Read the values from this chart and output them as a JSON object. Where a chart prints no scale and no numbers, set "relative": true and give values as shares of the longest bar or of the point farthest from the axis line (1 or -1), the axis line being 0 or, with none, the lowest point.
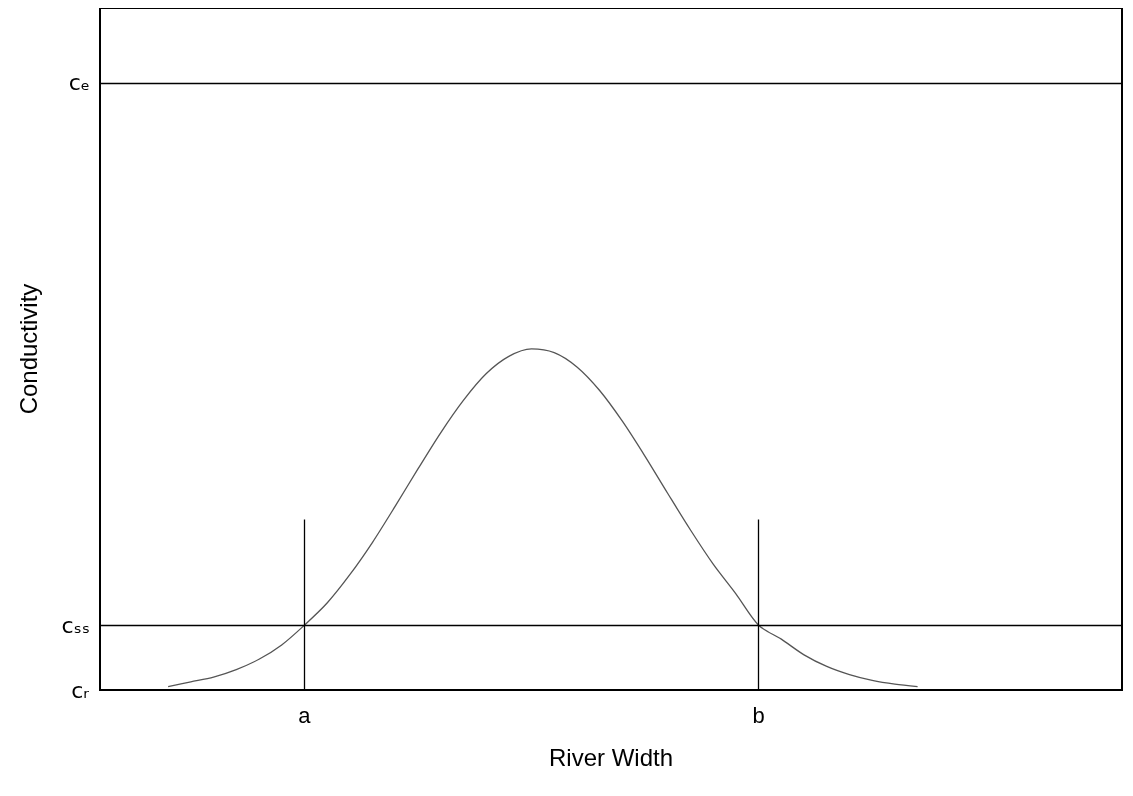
{
  "chart_data": {
    "type": "line",
    "xlabel": "River Width",
    "ylabel": "Conductivity",
    "relative": true,
    "categories": [
      null,
      null,
      null,
      null,
      null,
      null,
      null,
      null,
      null,
      "a",
      null,
      null,
      null,
      null,
      null,
      null,
      null,
      null,
      null,
      null,
      null,
      null,
      null,
      null,
      null,
      null,
      null,
      null,
      null,
      "b",
      null,
      null,
      null,
      null,
      null,
      null,
      null,
      null,
      null,
      null,
      null,
      null,
      null,
      null,
      null,
      null
    ],
    "series": [
      {
        "color": "#555555",
        "values": [
          null,
          null,
          null,
          0.01,
          0.024,
          0.038,
          0.06,
          0.09,
          0.132,
          0.19,
          0.255,
          0.338,
          0.433,
          0.539,
          0.648,
          0.754,
          0.849,
          0.927,
          0.978,
          1,
          0.989,
          0.947,
          0.878,
          0.788,
          0.685,
          0.576,
          0.469,
          0.369,
          0.282,
          0.19,
          0.149,
          0.103,
          0.069,
          0.045,
          0.028,
          0.017,
          0.01,
          null,
          null,
          null,
          null,
          null,
          null,
          null,
          null,
          null
        ]
      }
    ],
    "annotations": [
      "cᵣ"
    ],
    "ref_lines": [
      {
        "axis": "y",
        "value": 0.188,
        "label": "cₛₛ",
        "color": "#000000"
      },
      {
        "axis": "y",
        "value": 1.777,
        "label": "cₑ",
        "color": "#000000"
      },
      {
        "axis": "x",
        "value": "a",
        "color": "#000000"
      },
      {
        "axis": "x",
        "value": "b",
        "color": "#000000"
      }
    ],
    "marker": "none",
    "grid": false
  }
}
